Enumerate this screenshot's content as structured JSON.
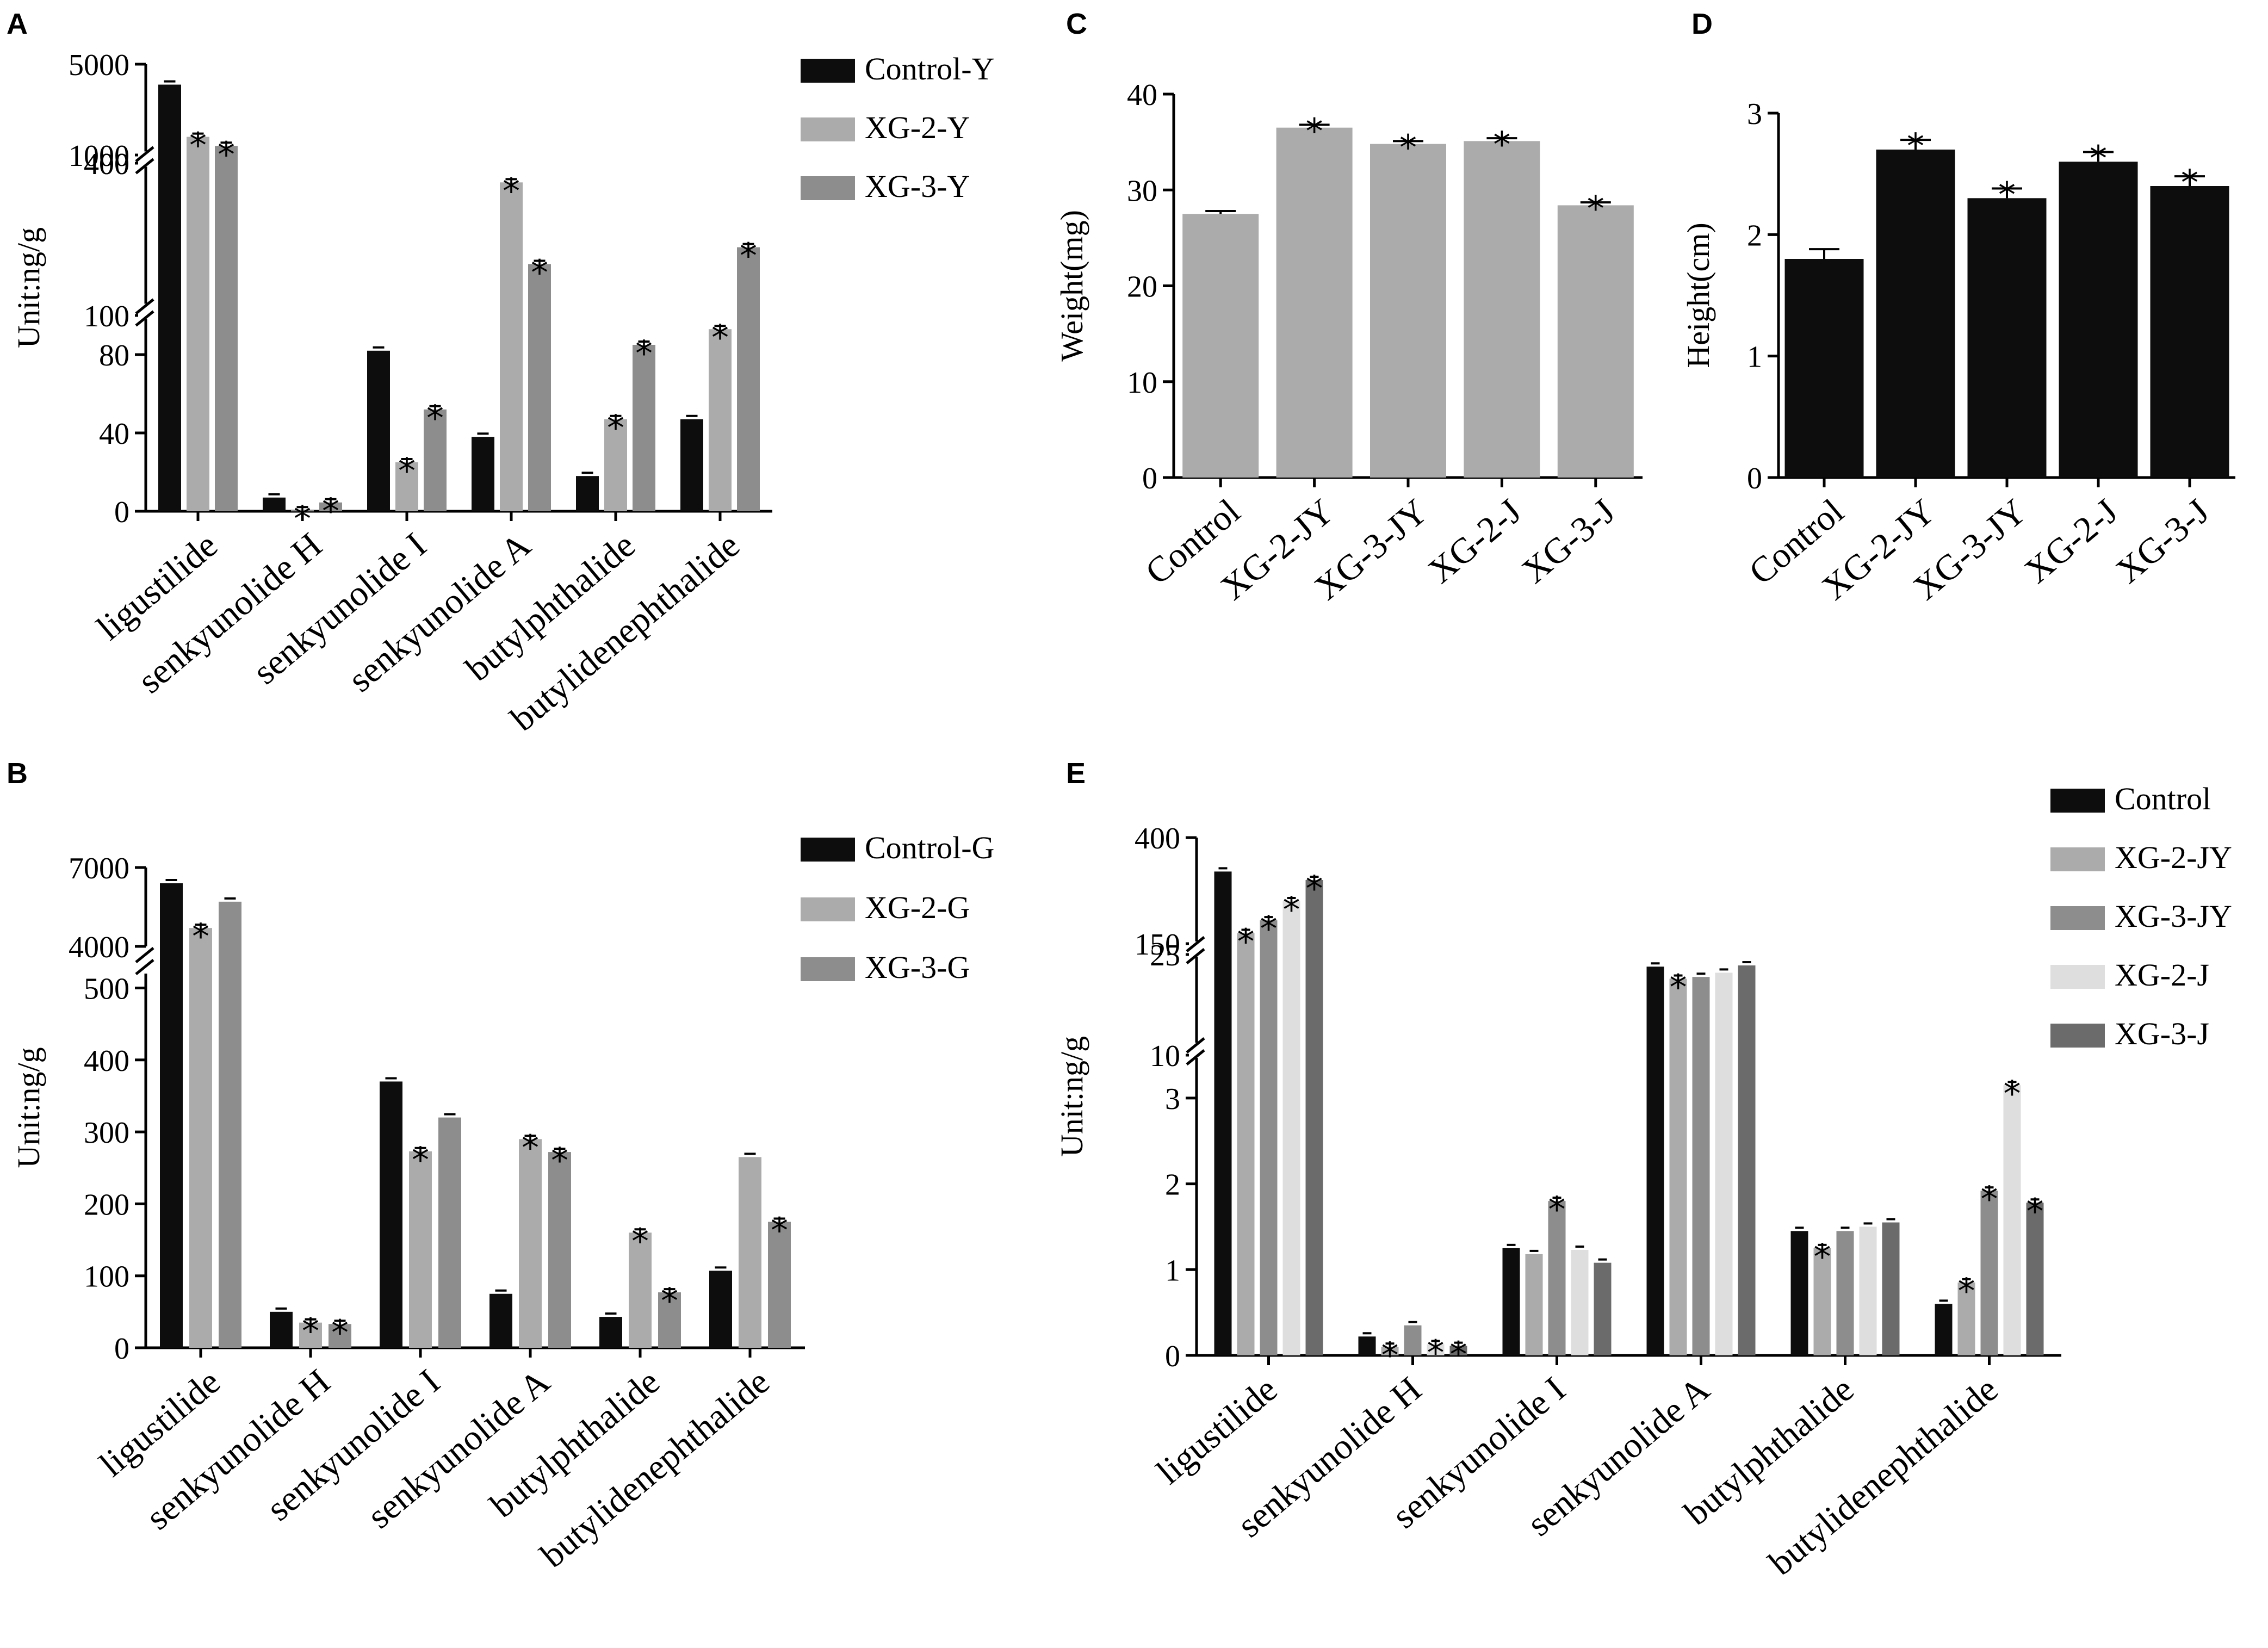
{
  "colors": {
    "black": "#0d0d0d",
    "light_gray": "#ababab",
    "mid_gray": "#8d8d8d",
    "very_light": "#dedede",
    "dark_gray": "#6b6b6b"
  },
  "chart_data": [
    {
      "panel": "A",
      "type": "bar",
      "ylabel": "Unit:ng/g",
      "broken_axis": true,
      "segments": [
        {
          "range": [
            0,
            100
          ],
          "ticks": [
            0,
            40,
            80
          ],
          "end_label": "100"
        },
        {
          "range": [
            100,
            400
          ],
          "ticks": [
            400
          ],
          "end_label": "400"
        },
        {
          "range": [
            1000,
            5000
          ],
          "ticks": [
            1000,
            5000
          ]
        }
      ],
      "categories": [
        "ligustilide",
        "senkyunolide H",
        "senkyunolide I",
        "senkyunolide A",
        "butylphthalide",
        "butylidenephthalide"
      ],
      "series": [
        {
          "name": "Control-Y",
          "values": [
            4100,
            7,
            82,
            38,
            18,
            47
          ],
          "stars": [
            false,
            false,
            false,
            false,
            false,
            false
          ]
        },
        {
          "name": "XG-2-Y",
          "values": [
            1800,
            0.5,
            25,
            360,
            47,
            93
          ],
          "stars": [
            true,
            true,
            true,
            true,
            true,
            true
          ]
        },
        {
          "name": "XG-3-Y",
          "values": [
            1400,
            4.5,
            52,
            190,
            85,
            225
          ],
          "stars": [
            true,
            true,
            true,
            true,
            true,
            true
          ]
        }
      ]
    },
    {
      "panel": "B",
      "type": "bar",
      "ylabel": "Unit:ng/g",
      "broken_axis": true,
      "segments": [
        {
          "range": [
            0,
            520
          ],
          "ticks": [
            0,
            100,
            200,
            300,
            400,
            500
          ]
        },
        {
          "range": [
            4000,
            7000
          ],
          "ticks": [
            4000,
            7000
          ]
        }
      ],
      "categories": [
        "ligustilide",
        "senkyunolide H",
        "senkyunolide I",
        "senkyunolide A",
        "butylphthalide",
        "butylidenephthalide"
      ],
      "series": [
        {
          "name": "Control-G",
          "values": [
            6400,
            50,
            370,
            75,
            43,
            107
          ],
          "stars": [
            false,
            false,
            false,
            false,
            false,
            false
          ]
        },
        {
          "name": "XG-2-G",
          "values": [
            4700,
            35,
            273,
            290,
            160,
            265
          ],
          "stars": [
            true,
            true,
            true,
            true,
            true,
            false
          ]
        },
        {
          "name": "XG-3-G",
          "values": [
            5700,
            33,
            320,
            272,
            77,
            175
          ],
          "stars": [
            false,
            true,
            false,
            true,
            true,
            true
          ]
        }
      ]
    },
    {
      "panel": "C",
      "type": "bar",
      "ylabel": "Weight(mg)",
      "ylim": [
        0,
        40
      ],
      "yticks": [
        0,
        10,
        20,
        30,
        40
      ],
      "categories": [
        "Control",
        "XG-2-JY",
        "XG-3-JY",
        "XG-2-J",
        "XG-3-J"
      ],
      "values": [
        27.5,
        36.5,
        34.8,
        35.1,
        28.4
      ],
      "errors": [
        0.3,
        0.3,
        0.3,
        0.3,
        0.3
      ],
      "stars": [
        false,
        true,
        true,
        true,
        true
      ]
    },
    {
      "panel": "D",
      "type": "bar",
      "ylabel": "Height(cm)",
      "ylim": [
        0,
        3
      ],
      "yticks": [
        0,
        1,
        2,
        3
      ],
      "categories": [
        "Control",
        "XG-2-JY",
        "XG-3-JY",
        "XG-2-J",
        "XG-3-J"
      ],
      "values": [
        1.8,
        2.7,
        2.3,
        2.6,
        2.4
      ],
      "errors": [
        0.08,
        0.08,
        0.08,
        0.08,
        0.08
      ],
      "stars": [
        false,
        true,
        true,
        true,
        true
      ]
    },
    {
      "panel": "E",
      "type": "bar",
      "ylabel": "Unit:ng/g",
      "broken_axis": true,
      "segments": [
        {
          "range": [
            0,
            3.5
          ],
          "ticks": [
            0,
            1,
            2,
            3
          ],
          "end_label": "10"
        },
        {
          "range": [
            10,
            25
          ],
          "ticks": [
            25
          ]
        },
        {
          "range": [
            150,
            400
          ],
          "ticks": [
            150,
            400
          ]
        }
      ],
      "categories": [
        "ligustilide",
        "senkyunolide H",
        "senkyunolide I",
        "senkyunolide A",
        "butylphthalide",
        "butylidenephthalide"
      ],
      "series": [
        {
          "name": "Control",
          "values": [
            320,
            0.22,
            1.25,
            23,
            1.45,
            0.6
          ],
          "stars": [
            false,
            false,
            false,
            false,
            false,
            false
          ]
        },
        {
          "name": "XG-2-JY",
          "values": [
            175,
            0.1,
            1.18,
            21,
            1.25,
            0.85
          ],
          "stars": [
            true,
            true,
            false,
            true,
            true,
            true
          ]
        },
        {
          "name": "XG-3-JY",
          "values": [
            205,
            0.35,
            1.8,
            21.3,
            1.45,
            1.92
          ],
          "stars": [
            true,
            false,
            true,
            false,
            false,
            true
          ]
        },
        {
          "name": "XG-2-J",
          "values": [
            250,
            0.13,
            1.23,
            22,
            1.5,
            3.15
          ],
          "stars": [
            true,
            true,
            false,
            false,
            false,
            true
          ]
        },
        {
          "name": "XG-3-J",
          "values": [
            300,
            0.11,
            1.08,
            23.2,
            1.55,
            1.78
          ],
          "stars": [
            true,
            true,
            false,
            false,
            false,
            true
          ]
        }
      ]
    }
  ],
  "panel_labels": [
    "A",
    "B",
    "C",
    "D",
    "E"
  ],
  "star_symbol": "*"
}
